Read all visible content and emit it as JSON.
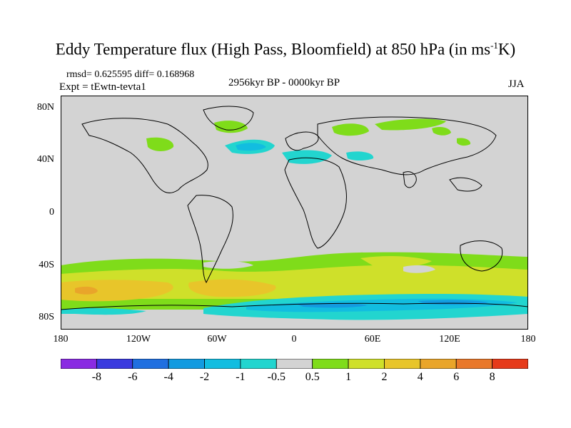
{
  "title_main": "Eddy Temperature flux (High Pass, Bloomfield) at 850 hPa (in ms",
  "title_sup": "-1",
  "title_end": "K)",
  "stats": "rmsd= 0.625595 diff= 0.168968",
  "experiment": "Expt = tEwtn-tevta1",
  "period": "2956kyr BP - 0000kyr BP",
  "season": "JJA",
  "lat_labels": [
    "80N",
    "40N",
    "0",
    "40S",
    "80S"
  ],
  "lon_labels": [
    "180",
    "120W",
    "60W",
    "0",
    "60E",
    "120E",
    "180"
  ],
  "colorbar": {
    "labels": [
      "-8",
      "-6",
      "-4",
      "-2",
      "-1",
      "-0.5",
      "0.5",
      "1",
      "2",
      "4",
      "6",
      "8"
    ],
    "colors": [
      "#8a2be2",
      "#3a3adf",
      "#1f6fe0",
      "#139be0",
      "#12bde0",
      "#22d5cf",
      "#d3d3d3",
      "#7fdc1a",
      "#cfe02a",
      "#e8c52a",
      "#e9a52a",
      "#e9782a",
      "#e63a1a"
    ]
  }
}
